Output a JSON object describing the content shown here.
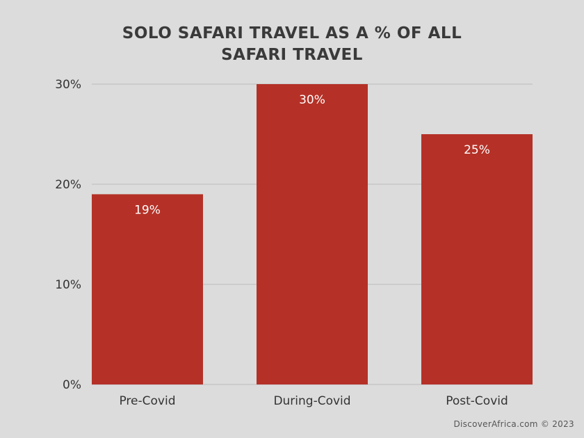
{
  "chart_data": {
    "type": "bar",
    "title_lines": [
      "SOLO SAFARI TRAVEL AS A % OF ALL",
      "SAFARI TRAVEL"
    ],
    "categories": [
      "Pre-Covid",
      "During-Covid",
      "Post-Covid"
    ],
    "values": [
      19,
      30,
      25
    ],
    "data_labels": [
      "19%",
      "30%",
      "25%"
    ],
    "yticks": [
      0,
      10,
      20,
      30
    ],
    "ytick_labels": [
      "0%",
      "10%",
      "20%",
      "30%"
    ],
    "ylim": [
      0,
      30
    ],
    "xlabel": "",
    "ylabel": "",
    "grid": true,
    "legend": "none",
    "bar_color": "#b53127",
    "background_color": "#dcdcdc"
  },
  "credit": "DiscoverAfrica.com © 2023"
}
